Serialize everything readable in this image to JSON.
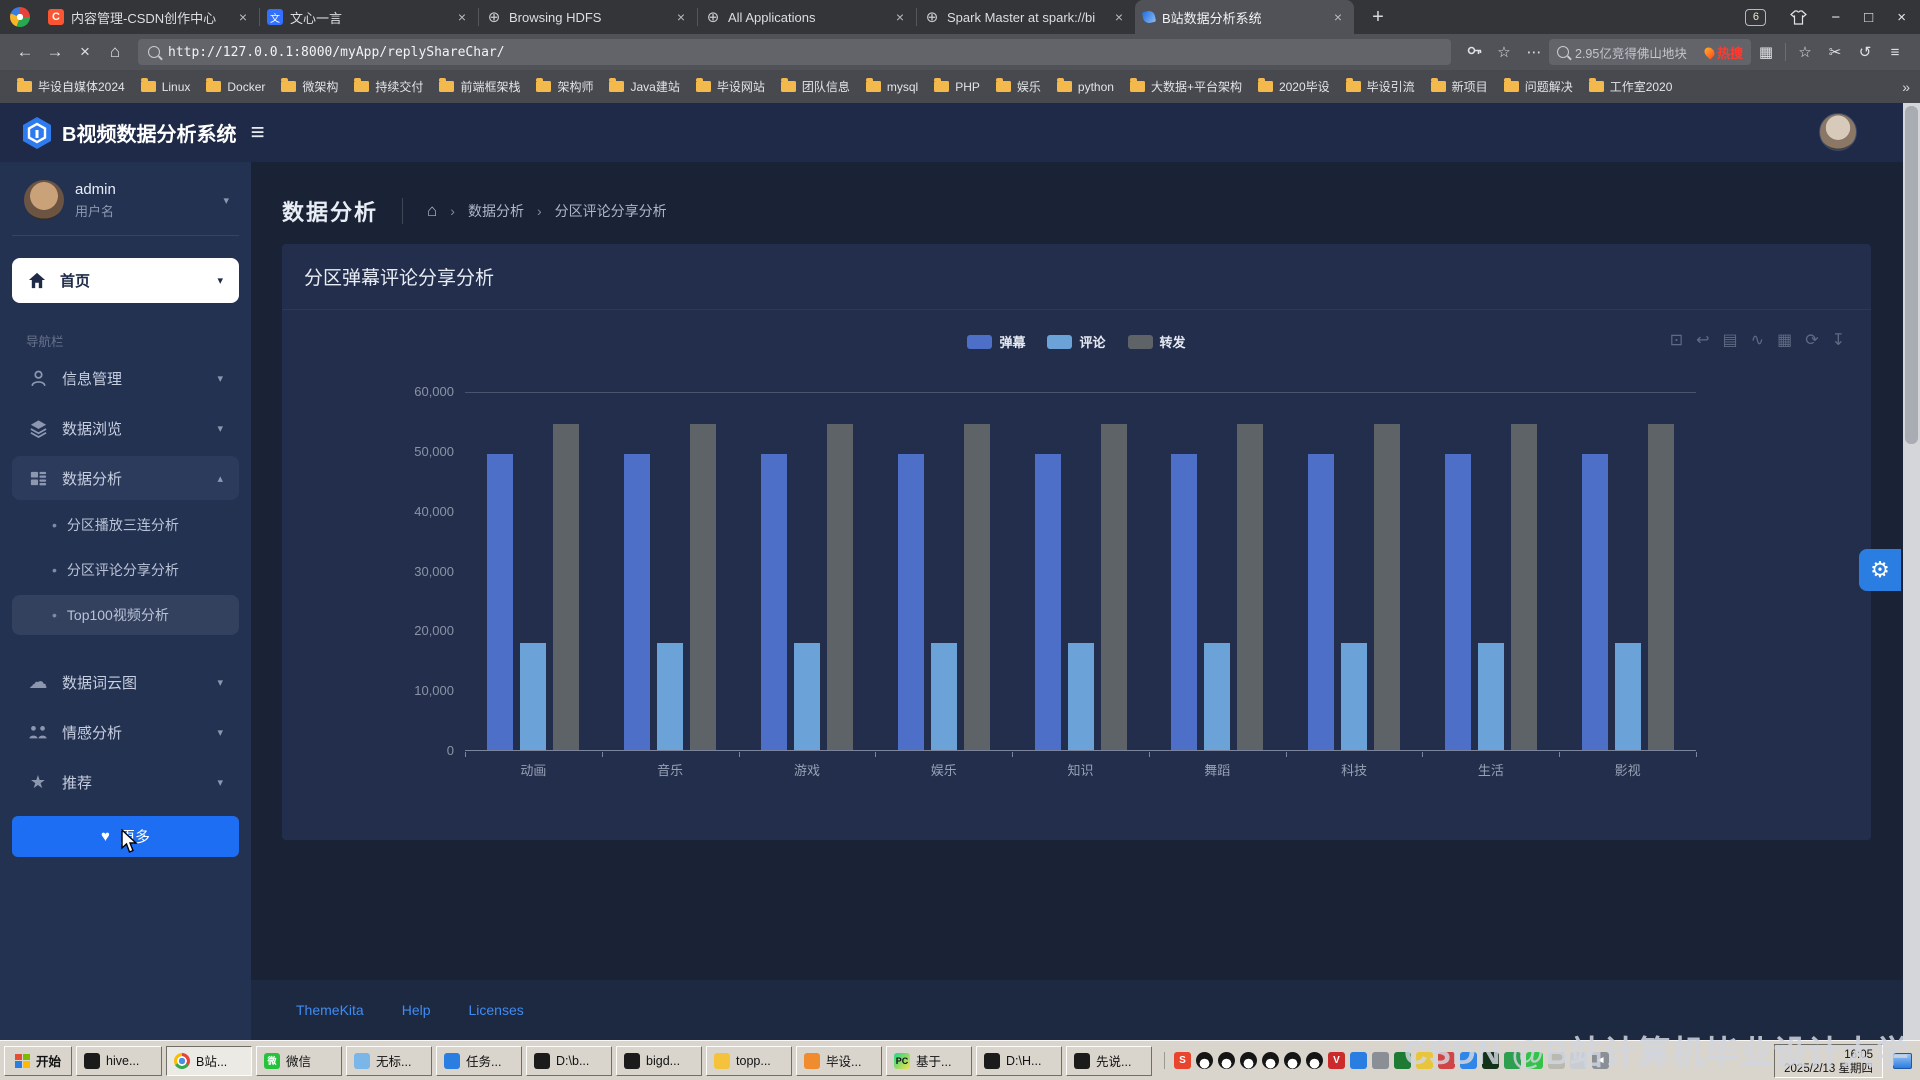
{
  "browser": {
    "tab_counter": "6",
    "window_controls": {
      "minimize": "−",
      "maximize": "□",
      "close": "×"
    },
    "tabs": [
      {
        "label": "内容管理-CSDN创作中心",
        "favicon": "csdn",
        "active": false
      },
      {
        "label": "文心一言",
        "favicon": "yiyan",
        "active": false
      },
      {
        "label": "Browsing HDFS",
        "favicon": "globe",
        "active": false
      },
      {
        "label": "All Applications",
        "favicon": "globe",
        "active": false
      },
      {
        "label": "Spark Master at spark://bi",
        "favicon": "globe",
        "active": false
      },
      {
        "label": "B站数据分析系统",
        "favicon": "brush",
        "active": true
      }
    ],
    "toolbar": {
      "url": "http://127.0.0.1:8000/myApp/replyShareChar/",
      "search_text": "2.95亿竞得佛山地块",
      "hot_label": "热搜"
    },
    "bookmarks": [
      "毕设自媒体2024",
      "Linux",
      "Docker",
      "微架构",
      "持续交付",
      "前端框架栈",
      "架构师",
      "Java建站",
      "毕设网站",
      "团队信息",
      "mysql",
      "PHP",
      "娱乐",
      "python",
      "大数据+平台架构",
      "2020毕设",
      "毕设引流",
      "新项目",
      "问题解决",
      "工作室2020"
    ]
  },
  "app": {
    "brand": "B视频数据分析系统",
    "user": {
      "name": "admin",
      "role": "用户名"
    },
    "sidebar": {
      "home": "首页",
      "section_label": "导航栏",
      "items": [
        {
          "label": "信息管理",
          "icon": "user-icon",
          "expanded": false
        },
        {
          "label": "数据浏览",
          "icon": "layers-icon",
          "expanded": false
        },
        {
          "label": "数据分析",
          "icon": "table-icon",
          "expanded": true,
          "active": true,
          "children": [
            {
              "label": "分区播放三连分析",
              "hover": false
            },
            {
              "label": "分区评论分享分析",
              "hover": false
            },
            {
              "label": "Top100视频分析",
              "hover": true
            }
          ]
        },
        {
          "label": "数据词云图",
          "icon": "cloud-icon",
          "expanded": false
        },
        {
          "label": "情感分析",
          "icon": "people-icon",
          "expanded": false
        },
        {
          "label": "推荐",
          "icon": "star-icon",
          "expanded": false
        }
      ],
      "more_button": "更多"
    },
    "page_title": "数据分析",
    "breadcrumb": [
      "数据分析",
      "分区评论分享分析"
    ],
    "footer_links": [
      "ThemeKita",
      "Help",
      "Licenses"
    ]
  },
  "chart_data": {
    "type": "bar",
    "title": "分区弹幕评论分享分析",
    "categories": [
      "动画",
      "音乐",
      "游戏",
      "娱乐",
      "知识",
      "舞蹈",
      "科技",
      "生活",
      "影视"
    ],
    "series": [
      {
        "name": "弹幕",
        "color": "#4e6fc8",
        "values": [
          49500,
          49500,
          49500,
          49500,
          49500,
          49500,
          49500,
          49500,
          49500
        ]
      },
      {
        "name": "评论",
        "color": "#6ba3d8",
        "values": [
          17900,
          17900,
          17900,
          17900,
          17900,
          17900,
          17900,
          17900,
          17900
        ]
      },
      {
        "name": "转发",
        "color": "#5e6367",
        "values": [
          54500,
          54500,
          54500,
          54500,
          54500,
          54500,
          54500,
          54500,
          54500
        ]
      }
    ],
    "ylim": [
      0,
      60000
    ],
    "yticks": [
      60000,
      50000,
      40000,
      30000,
      20000,
      10000,
      0
    ],
    "legend_position": "top-center",
    "grid": false,
    "toolbox": [
      "area-zoom",
      "zoom-reset",
      "data-view",
      "switch-line-chart",
      "switch-bar-chart",
      "restore",
      "save-image"
    ]
  },
  "watermark": "CSDN @B站计算机毕业设计大学",
  "taskbar": {
    "start_label": "开始",
    "buttons": [
      {
        "label": "hive...",
        "icon": "hive",
        "color": "#1b1b1b",
        "active": false
      },
      {
        "label": "B站...",
        "icon": "chrome",
        "color": "",
        "active": true
      },
      {
        "label": "微信",
        "icon": "wechat",
        "color": "#25c33b",
        "active": false
      },
      {
        "label": "无标...",
        "icon": "notepad",
        "color": "#7ab7e8",
        "active": false
      },
      {
        "label": "任务...",
        "icon": "task",
        "color": "#2a7de1",
        "active": false
      },
      {
        "label": "D:\\b...",
        "icon": "cmd",
        "color": "#1b1b1b",
        "active": false
      },
      {
        "label": "bigd...",
        "icon": "cmd",
        "color": "#1b1b1b",
        "active": false
      },
      {
        "label": "topp...",
        "icon": "topp",
        "color": "#f5c33b",
        "active": false
      },
      {
        "label": "毕设...",
        "icon": "folder",
        "color": "#f08c2e",
        "active": false
      },
      {
        "label": "基于...",
        "icon": "pycharm",
        "color": "#21d789",
        "active": false
      },
      {
        "label": "D:\\H...",
        "icon": "cmd",
        "color": "#1b1b1b",
        "active": false
      },
      {
        "label": "先说...",
        "icon": "cmd",
        "color": "#1b1b1b",
        "active": false
      }
    ],
    "tray": [
      {
        "name": "sogou-input-icon",
        "color": "#e8442e",
        "glyph": "S"
      },
      {
        "name": "qq-penguin-icon",
        "penguin": true
      },
      {
        "name": "qq-penguin-icon",
        "penguin": true
      },
      {
        "name": "qq-penguin-icon",
        "penguin": true
      },
      {
        "name": "qq-penguin-icon",
        "penguin": true
      },
      {
        "name": "qq-penguin-icon",
        "penguin": true
      },
      {
        "name": "qq-penguin-icon",
        "penguin": true
      },
      {
        "name": "v-safety-icon",
        "color": "#cc2b2b",
        "glyph": "V"
      },
      {
        "name": "shield-icon",
        "color": "#2a7de1",
        "glyph": ""
      },
      {
        "name": "phone-link-icon",
        "color": "#8a8f96",
        "glyph": ""
      },
      {
        "name": "green-card-icon",
        "color": "#1f7a33",
        "glyph": ""
      },
      {
        "name": "drop-icon",
        "color": "#e8c53a",
        "glyph": ""
      },
      {
        "name": "red-swirl-icon",
        "color": "#d04545",
        "glyph": ""
      },
      {
        "name": "blue-sync-icon",
        "color": "#2f86e8",
        "glyph": ""
      },
      {
        "name": "terminal-icon",
        "color": "#14321a",
        "glyph": ""
      },
      {
        "name": "shield-check-icon",
        "color": "#2e9e4f",
        "glyph": ""
      },
      {
        "name": "green-dot-icon",
        "color": "#35c24a",
        "glyph": ""
      },
      {
        "name": "recycle-icon",
        "color": "#b9b9b2",
        "glyph": ""
      },
      {
        "name": "network-icon",
        "color": "#c9cdd2",
        "glyph": ""
      },
      {
        "name": "speaker-icon",
        "color": "#8a8f96",
        "glyph": "◄"
      }
    ],
    "clock": {
      "time": "16:05",
      "date": "2025/2/13 星期四"
    }
  }
}
